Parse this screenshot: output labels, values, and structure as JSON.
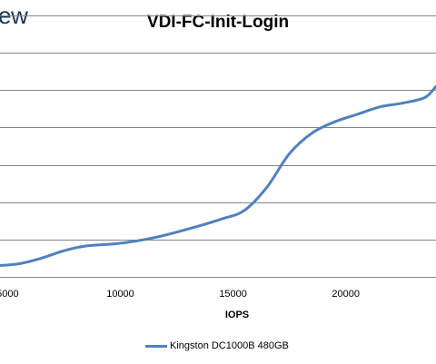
{
  "logo_text": "ew",
  "chart_data": {
    "type": "line",
    "title": "VDI-FC-Init-Login",
    "xlabel": "IOPS",
    "ylabel": "",
    "xticks": [
      5000,
      10000,
      15000,
      20000
    ],
    "xtick_labels": [
      "5000",
      "10000",
      "15000",
      "20000"
    ],
    "xlim": [
      4500,
      24000
    ],
    "ylim": [
      0,
      7
    ],
    "ygrid": [
      1,
      2,
      3,
      4,
      5,
      6,
      7
    ],
    "grid": "horizontal",
    "legend_position": "bottom",
    "series": [
      {
        "name": "Kingston DC1000B 480GB",
        "color": "#4f81bd",
        "x": [
          4500,
          5500,
          6500,
          7500,
          8500,
          10000,
          11500,
          13000,
          14500,
          15500,
          16500,
          17500,
          18500,
          19500,
          20500,
          21500,
          22500,
          23500,
          24000
        ],
        "y": [
          0.3,
          0.35,
          0.5,
          0.7,
          0.83,
          0.9,
          1.05,
          1.28,
          1.55,
          1.78,
          2.4,
          3.3,
          3.85,
          4.15,
          4.35,
          4.55,
          4.65,
          4.8,
          5.1
        ]
      }
    ]
  }
}
